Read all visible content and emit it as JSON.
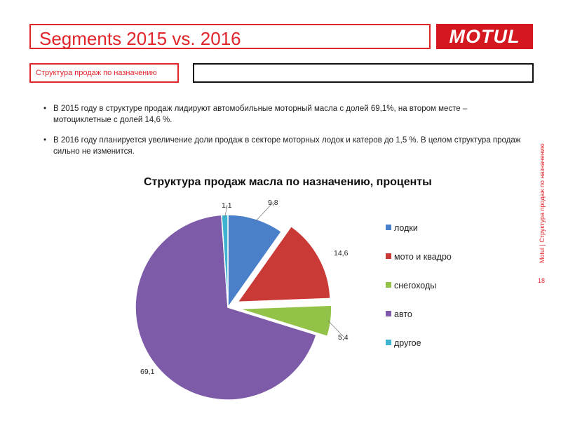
{
  "header": {
    "title": "Segments 2015 vs. 2016",
    "logo_text": "MOTUL"
  },
  "subtitle": "Структура продаж по назначению",
  "bullets": [
    "В 2015 году в структуре продаж лидируют автомобильные моторный масла с долей 69,1%, на втором месте – мотоциклетные с долей 14,6 %.",
    "В 2016 году планируется увеличение доли продаж в секторе моторных лодок и катеров до 1,5 %. В целом структура продаж сильно не изменится."
  ],
  "side_label": "Motul   |   Структура продаж по назначению",
  "page_number": "18",
  "colors": {
    "accent": "#e0252b",
    "logo_bg": "#d5171f"
  },
  "chart_data": {
    "type": "pie",
    "title": "Структура продаж масла по назначению, проценты",
    "categories": [
      "лодки",
      "мото и квадро",
      "снегоходы",
      "авто",
      "другое"
    ],
    "values": [
      9.8,
      14.6,
      5.4,
      69.1,
      1.1
    ],
    "value_labels": [
      "9,8",
      "14,6",
      "5,4",
      "69,1",
      "1,1"
    ],
    "colors": [
      "#4a7fc9",
      "#c93a36",
      "#93c248",
      "#7d5ba8",
      "#3fb4cf"
    ],
    "exploded": [
      "мото и квадро",
      "снегоходы"
    ],
    "legend_position": "right"
  }
}
